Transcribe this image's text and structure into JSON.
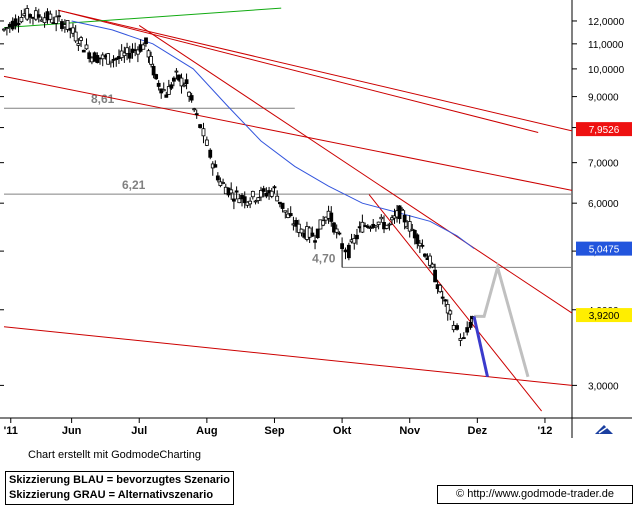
{
  "chart_data": {
    "type": "candlestick",
    "title": "",
    "xlabel": "",
    "ylabel": "",
    "x_ticks": [
      {
        "label": "'11",
        "month": 4.1
      },
      {
        "label": "Jun",
        "month": 5.0
      },
      {
        "label": "Jul",
        "month": 6.0
      },
      {
        "label": "Aug",
        "month": 7.0
      },
      {
        "label": "Sep",
        "month": 8.0
      },
      {
        "label": "Okt",
        "month": 9.0
      },
      {
        "label": "Nov",
        "month": 10.0
      },
      {
        "label": "Dez",
        "month": 11.0
      },
      {
        "label": "'12",
        "month": 12.0
      }
    ],
    "x_range": [
      4.0,
      12.4
    ],
    "y_scale": "log",
    "y_range": [
      2.65,
      12.8
    ],
    "y_ticks": [
      "12,0000",
      "11,0000",
      "10,0000",
      "9,0000",
      "8,0000",
      "7,0000",
      "6,0000",
      "5,0000",
      "4,0000",
      "3,0000"
    ],
    "y_tick_values": [
      12,
      11,
      10,
      9,
      8,
      7,
      6,
      5,
      4,
      3
    ],
    "price_series": [
      [
        4.0,
        11.6
      ],
      [
        4.3,
        12.3
      ],
      [
        4.6,
        12.2
      ],
      [
        4.9,
        11.9
      ],
      [
        5.1,
        11.2
      ],
      [
        5.3,
        10.5
      ],
      [
        5.5,
        10.4
      ],
      [
        5.7,
        10.4
      ],
      [
        5.9,
        10.7
      ],
      [
        6.1,
        11.0
      ],
      [
        6.25,
        9.6
      ],
      [
        6.4,
        9.1
      ],
      [
        6.55,
        9.7
      ],
      [
        6.7,
        9.4
      ],
      [
        6.85,
        8.3
      ],
      [
        6.95,
        7.8
      ],
      [
        7.05,
        7.2
      ],
      [
        7.2,
        6.5
      ],
      [
        7.4,
        6.2
      ],
      [
        7.6,
        6.1
      ],
      [
        7.8,
        6.2
      ],
      [
        8.0,
        6.3
      ],
      [
        8.2,
        5.7
      ],
      [
        8.4,
        5.4
      ],
      [
        8.6,
        5.3
      ],
      [
        8.8,
        5.8
      ],
      [
        9.0,
        5.1
      ],
      [
        9.1,
        5.0
      ],
      [
        9.3,
        5.5
      ],
      [
        9.5,
        5.6
      ],
      [
        9.7,
        5.5
      ],
      [
        9.85,
        5.8
      ],
      [
        10.0,
        5.5
      ],
      [
        10.15,
        5.2
      ],
      [
        10.3,
        4.8
      ],
      [
        10.45,
        4.3
      ],
      [
        10.6,
        3.9
      ],
      [
        10.7,
        3.7
      ],
      [
        10.8,
        3.55
      ],
      [
        10.9,
        3.8
      ],
      [
        10.95,
        3.92
      ]
    ],
    "moving_average": [
      [
        5.0,
        12.0
      ],
      [
        5.6,
        11.6
      ],
      [
        6.2,
        11.0
      ],
      [
        6.8,
        10.0
      ],
      [
        7.3,
        8.7
      ],
      [
        7.8,
        7.6
      ],
      [
        8.3,
        6.9
      ],
      [
        8.8,
        6.4
      ],
      [
        9.3,
        6.0
      ],
      [
        9.8,
        5.8
      ],
      [
        10.3,
        5.6
      ],
      [
        10.7,
        5.3
      ],
      [
        10.95,
        5.05
      ]
    ],
    "support_lines": [
      {
        "label": "8,61",
        "value": 8.61,
        "from": 4.0,
        "to": 8.3
      },
      {
        "label": "6,21",
        "value": 6.21,
        "from": 4.0,
        "to": 12.4
      },
      {
        "label": "4,70",
        "value": 4.7,
        "from": 9.0,
        "to": 12.4
      }
    ],
    "trend_lines": [
      {
        "color": "#cc0000",
        "points": [
          [
            4.8,
            12.5
          ],
          [
            12.4,
            7.9
          ]
        ]
      },
      {
        "color": "#cc0000",
        "points": [
          [
            4.8,
            12.5
          ],
          [
            11.9,
            7.85
          ]
        ]
      },
      {
        "color": "#cc0000",
        "points": [
          [
            4.0,
            9.72
          ],
          [
            12.4,
            6.3
          ]
        ]
      },
      {
        "color": "#cc0000",
        "points": [
          [
            6.0,
            11.8
          ],
          [
            12.4,
            3.95
          ]
        ]
      },
      {
        "color": "#cc0000",
        "points": [
          [
            9.4,
            6.2
          ],
          [
            11.95,
            2.72
          ]
        ]
      },
      {
        "color": "#cc0000",
        "points": [
          [
            4.0,
            3.75
          ],
          [
            12.4,
            3.0
          ]
        ]
      },
      {
        "color": "#11aa11",
        "points": [
          [
            4.0,
            11.7
          ],
          [
            8.1,
            12.6
          ]
        ]
      }
    ],
    "scenario_blue": {
      "label": "Skizzierung BLAU = bevorzugtes Szenario",
      "color": "#3a3acc",
      "points": [
        [
          10.95,
          3.9
        ],
        [
          11.15,
          3.1
        ]
      ]
    },
    "scenario_grey": {
      "label": "Skizzierung GRAU = Alternativszenario",
      "color": "#c0c0c0",
      "points": [
        [
          10.95,
          3.9
        ],
        [
          11.1,
          3.9
        ],
        [
          11.3,
          4.7
        ],
        [
          11.75,
          3.1
        ]
      ]
    },
    "price_labels": [
      {
        "text": "7,9526",
        "value": 7.9526,
        "background": "#ee1111",
        "color": "#ffffff"
      },
      {
        "text": "5,0475",
        "value": 5.0475,
        "background": "#2255dd",
        "color": "#ffffff"
      },
      {
        "text": "3,9200",
        "value": 3.92,
        "background": "#ffee00",
        "color": "#000000"
      }
    ],
    "colors": {
      "candles": "#000000",
      "moving_average": "#3355dd",
      "support": "#808080",
      "grid": "#000000"
    }
  },
  "footer": {
    "credit": "Chart erstellt mit GodmodeCharting",
    "url_icon": "©",
    "url": "http://www.godmode-trader.de",
    "tool_icon": "chart-tool-icon"
  }
}
